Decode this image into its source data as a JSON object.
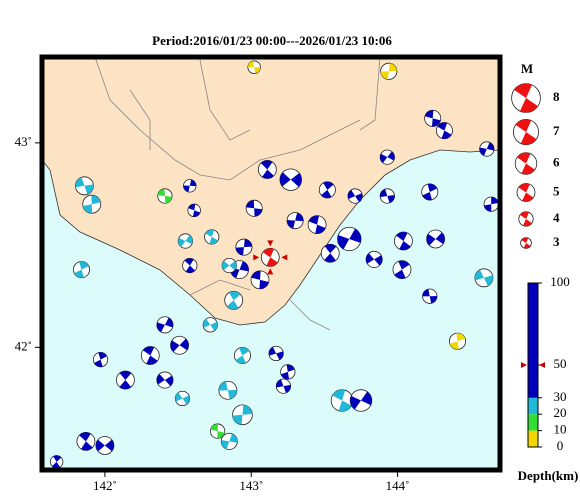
{
  "title": "Period:2016/01/23 00:00---2026/01/23 10:06",
  "map": {
    "lonlim": [
      141.57,
      144.7
    ],
    "latlim": [
      41.4,
      43.42
    ],
    "lonticks": [
      {
        "value": 142,
        "label": "142˚"
      },
      {
        "value": 143,
        "label": "143˚"
      },
      {
        "value": 144,
        "label": "144˚"
      }
    ],
    "latticks": [
      {
        "value": 42,
        "label": "42˚"
      },
      {
        "value": 43,
        "label": "43˚"
      }
    ],
    "events": [
      {
        "lon": 143.02,
        "lat": 43.37,
        "depth": 5,
        "mag": 3.5
      },
      {
        "lon": 143.94,
        "lat": 43.35,
        "depth": 5,
        "mag": 4.5
      },
      {
        "lon": 144.24,
        "lat": 43.12,
        "depth": 60,
        "mag": 4.5
      },
      {
        "lon": 144.61,
        "lat": 42.97,
        "depth": 60,
        "mag": 4
      },
      {
        "lon": 144.32,
        "lat": 43.06,
        "depth": 60,
        "mag": 4.5
      },
      {
        "lon": 143.93,
        "lat": 42.93,
        "depth": 60,
        "mag": 4
      },
      {
        "lon": 143.11,
        "lat": 42.87,
        "depth": 60,
        "mag": 5
      },
      {
        "lon": 143.27,
        "lat": 42.82,
        "depth": 60,
        "mag": 6
      },
      {
        "lon": 143.52,
        "lat": 42.77,
        "depth": 60,
        "mag": 4.5
      },
      {
        "lon": 143.71,
        "lat": 42.74,
        "depth": 60,
        "mag": 4
      },
      {
        "lon": 144.22,
        "lat": 42.76,
        "depth": 60,
        "mag": 4.5
      },
      {
        "lon": 143.93,
        "lat": 42.74,
        "depth": 60,
        "mag": 4
      },
      {
        "lon": 144.64,
        "lat": 42.7,
        "depth": 60,
        "mag": 4
      },
      {
        "lon": 143.02,
        "lat": 42.68,
        "depth": 60,
        "mag": 4.5
      },
      {
        "lon": 143.3,
        "lat": 42.62,
        "depth": 60,
        "mag": 4.5
      },
      {
        "lon": 143.45,
        "lat": 42.6,
        "depth": 60,
        "mag": 5
      },
      {
        "lon": 143.67,
        "lat": 42.53,
        "depth": 40,
        "mag": 6.5
      },
      {
        "lon": 144.04,
        "lat": 42.52,
        "depth": 60,
        "mag": 5
      },
      {
        "lon": 144.26,
        "lat": 42.53,
        "depth": 60,
        "mag": 5
      },
      {
        "lon": 143.54,
        "lat": 42.46,
        "depth": 60,
        "mag": 5
      },
      {
        "lon": 143.84,
        "lat": 42.43,
        "depth": 60,
        "mag": 4.5
      },
      {
        "lon": 144.03,
        "lat": 42.38,
        "depth": 60,
        "mag": 5
      },
      {
        "lon": 144.59,
        "lat": 42.34,
        "depth": 25,
        "mag": 5
      },
      {
        "lon": 144.41,
        "lat": 42.03,
        "depth": 5,
        "mag": 4.5
      },
      {
        "lon": 144.22,
        "lat": 42.25,
        "depth": 60,
        "mag": 4
      },
      {
        "lon": 142.95,
        "lat": 42.49,
        "depth": 60,
        "mag": 4.5
      },
      {
        "lon": 143.06,
        "lat": 42.33,
        "depth": 60,
        "mag": 5
      },
      {
        "lon": 142.92,
        "lat": 42.38,
        "depth": 60,
        "mag": 5
      },
      {
        "lon": 142.73,
        "lat": 42.54,
        "depth": 25,
        "mag": 4
      },
      {
        "lon": 142.55,
        "lat": 42.52,
        "depth": 25,
        "mag": 4
      },
      {
        "lon": 142.58,
        "lat": 42.4,
        "depth": 60,
        "mag": 4
      },
      {
        "lon": 142.85,
        "lat": 42.4,
        "depth": 25,
        "mag": 4
      },
      {
        "lon": 142.88,
        "lat": 42.23,
        "depth": 25,
        "mag": 5
      },
      {
        "lon": 142.72,
        "lat": 42.11,
        "depth": 25,
        "mag": 4
      },
      {
        "lon": 141.84,
        "lat": 42.38,
        "depth": 25,
        "mag": 4.5
      },
      {
        "lon": 141.86,
        "lat": 42.79,
        "depth": 25,
        "mag": 5
      },
      {
        "lon": 141.91,
        "lat": 42.7,
        "depth": 25,
        "mag": 5
      },
      {
        "lon": 142.41,
        "lat": 42.74,
        "depth": 15,
        "mag": 4
      },
      {
        "lon": 142.58,
        "lat": 42.79,
        "depth": 60,
        "mag": 3.5
      },
      {
        "lon": 142.61,
        "lat": 42.67,
        "depth": 60,
        "mag": 3.5
      },
      {
        "lon": 142.41,
        "lat": 42.11,
        "depth": 60,
        "mag": 4.5
      },
      {
        "lon": 142.31,
        "lat": 41.96,
        "depth": 60,
        "mag": 5
      },
      {
        "lon": 142.51,
        "lat": 42.01,
        "depth": 60,
        "mag": 5
      },
      {
        "lon": 142.14,
        "lat": 41.84,
        "depth": 60,
        "mag": 5
      },
      {
        "lon": 142.41,
        "lat": 41.84,
        "depth": 60,
        "mag": 4.5
      },
      {
        "lon": 142.94,
        "lat": 41.96,
        "depth": 25,
        "mag": 4.5
      },
      {
        "lon": 143.17,
        "lat": 41.97,
        "depth": 60,
        "mag": 4
      },
      {
        "lon": 143.25,
        "lat": 41.88,
        "depth": 60,
        "mag": 4
      },
      {
        "lon": 142.84,
        "lat": 41.79,
        "depth": 25,
        "mag": 5
      },
      {
        "lon": 142.94,
        "lat": 41.67,
        "depth": 25,
        "mag": 5.5
      },
      {
        "lon": 142.77,
        "lat": 41.59,
        "depth": 15,
        "mag": 4
      },
      {
        "lon": 142.85,
        "lat": 41.54,
        "depth": 25,
        "mag": 4.5
      },
      {
        "lon": 143.62,
        "lat": 41.74,
        "depth": 25,
        "mag": 6
      },
      {
        "lon": 143.75,
        "lat": 41.74,
        "depth": 60,
        "mag": 6
      },
      {
        "lon": 141.87,
        "lat": 41.54,
        "depth": 60,
        "mag": 5
      },
      {
        "lon": 142.0,
        "lat": 41.52,
        "depth": 60,
        "mag": 5
      },
      {
        "lon": 141.67,
        "lat": 41.44,
        "depth": 60,
        "mag": 3.5
      },
      {
        "lon": 142.53,
        "lat": 41.75,
        "depth": 25,
        "mag": 4
      },
      {
        "lon": 141.97,
        "lat": 41.94,
        "depth": 60,
        "mag": 4
      },
      {
        "lon": 143.22,
        "lat": 41.81,
        "depth": 60,
        "mag": 4
      }
    ],
    "main_event": {
      "lon": 143.13,
      "lat": 42.44,
      "depth": 50,
      "mag": 5,
      "color": "#ee1111"
    }
  },
  "magnitude_legend": {
    "title": "M",
    "values": [
      8,
      7,
      6,
      5,
      4,
      3
    ],
    "color": "#ee1111"
  },
  "depth_scale": {
    "label": "Depth(km)",
    "lim": [
      0,
      100
    ],
    "ticks": [
      0,
      10,
      20,
      30,
      50,
      100
    ],
    "bands": [
      {
        "from": 0,
        "to": 10,
        "color": "#f2d800"
      },
      {
        "from": 10,
        "to": 20,
        "color": "#33dd33"
      },
      {
        "from": 20,
        "to": 30,
        "color": "#22b8d8"
      },
      {
        "from": 30,
        "to": 100,
        "color": "#0000bb"
      }
    ]
  }
}
